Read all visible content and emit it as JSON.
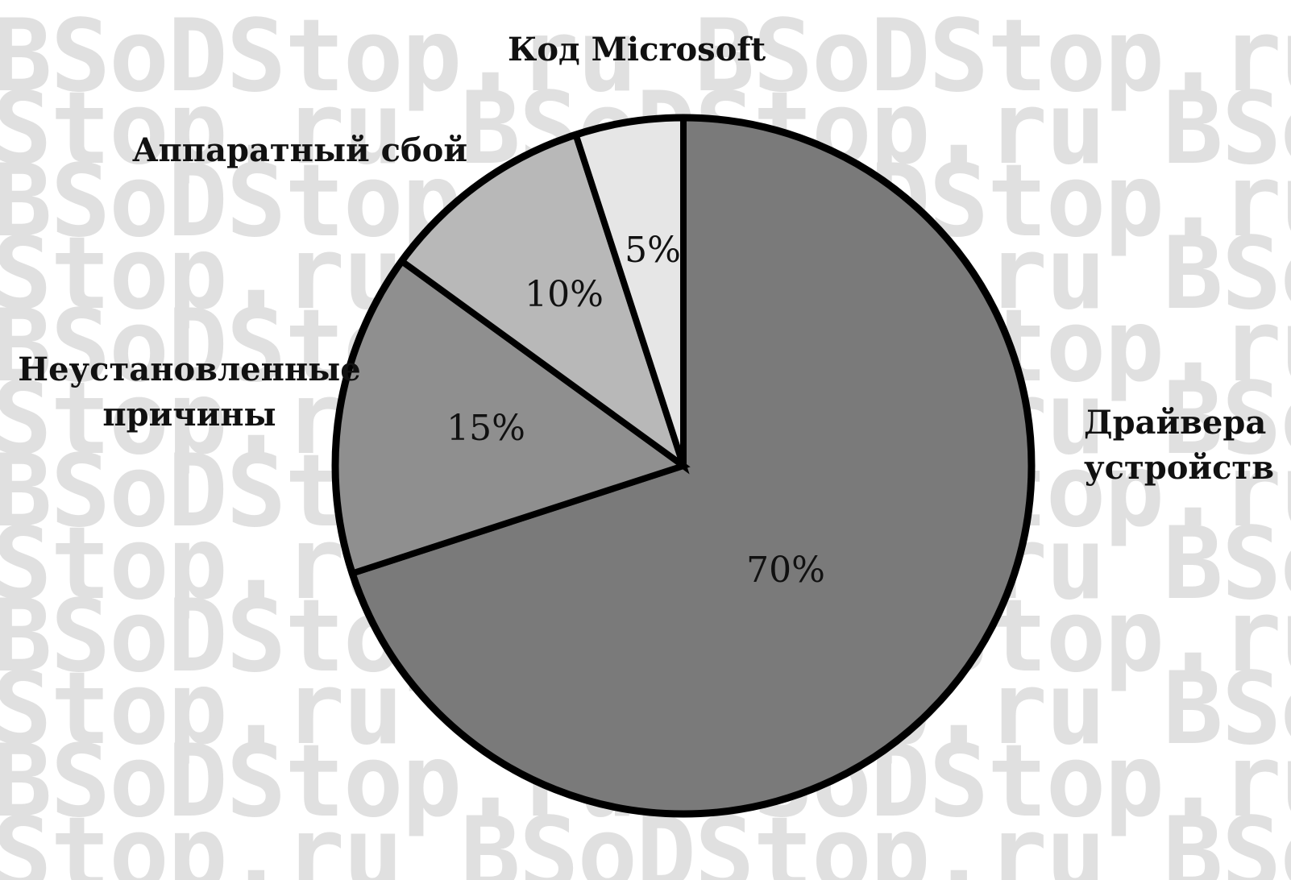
{
  "watermark": {
    "text": "BSoDStop.ru BSoDStop.ru BSoDStop.ru",
    "text_alt": "Stop.ru BSoDStop.ru BSoDStop.ru BSoDStop",
    "color": "#e0e0e0"
  },
  "chart_data": {
    "type": "pie",
    "title": "",
    "start_angle_deg": 0,
    "direction": "clockwise",
    "slices": [
      {
        "label_lines": [
          "Драйвера",
          "устройств"
        ],
        "value": 70,
        "value_label": "70%",
        "color": "#7a7a7a"
      },
      {
        "label_lines": [
          "Неустановленные",
          "причины"
        ],
        "value": 15,
        "value_label": "15%",
        "color": "#8f8f8f"
      },
      {
        "label_lines": [
          "Аппаратный сбой"
        ],
        "value": 10,
        "value_label": "10%",
        "color": "#b8b8b8"
      },
      {
        "label_lines": [
          "Код Microsoft"
        ],
        "value": 5,
        "value_label": "5%",
        "color": "#e6e6e6"
      }
    ],
    "legend": "none",
    "outline_color": "#000000"
  }
}
